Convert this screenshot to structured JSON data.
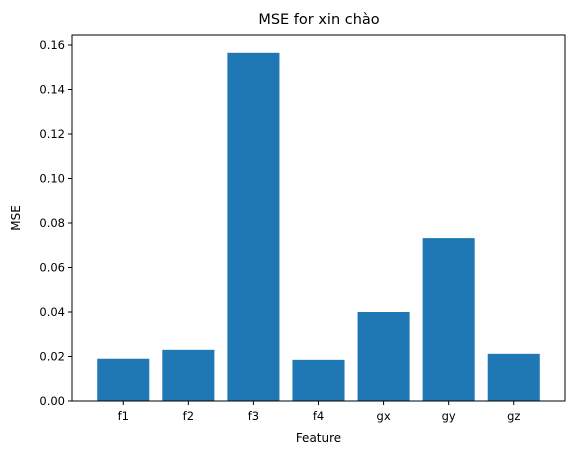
{
  "chart_data": {
    "type": "bar",
    "title": "MSE for xin chào",
    "xlabel": "Feature",
    "ylabel": "MSE",
    "categories": [
      "f1",
      "f2",
      "f3",
      "f4",
      "gx",
      "gy",
      "gz"
    ],
    "values": [
      0.019,
      0.023,
      0.1565,
      0.0185,
      0.04,
      0.0732,
      0.0212
    ],
    "ylim": [
      0,
      0.1645
    ],
    "yticks": [
      0.0,
      0.02,
      0.04,
      0.06,
      0.08,
      0.1,
      0.12,
      0.14,
      0.16
    ],
    "ytick_labels": [
      "0.00",
      "0.02",
      "0.04",
      "0.06",
      "0.08",
      "0.10",
      "0.12",
      "0.14",
      "0.16"
    ],
    "bar_color": "#1f77b4",
    "grid": false,
    "legend": "none"
  }
}
